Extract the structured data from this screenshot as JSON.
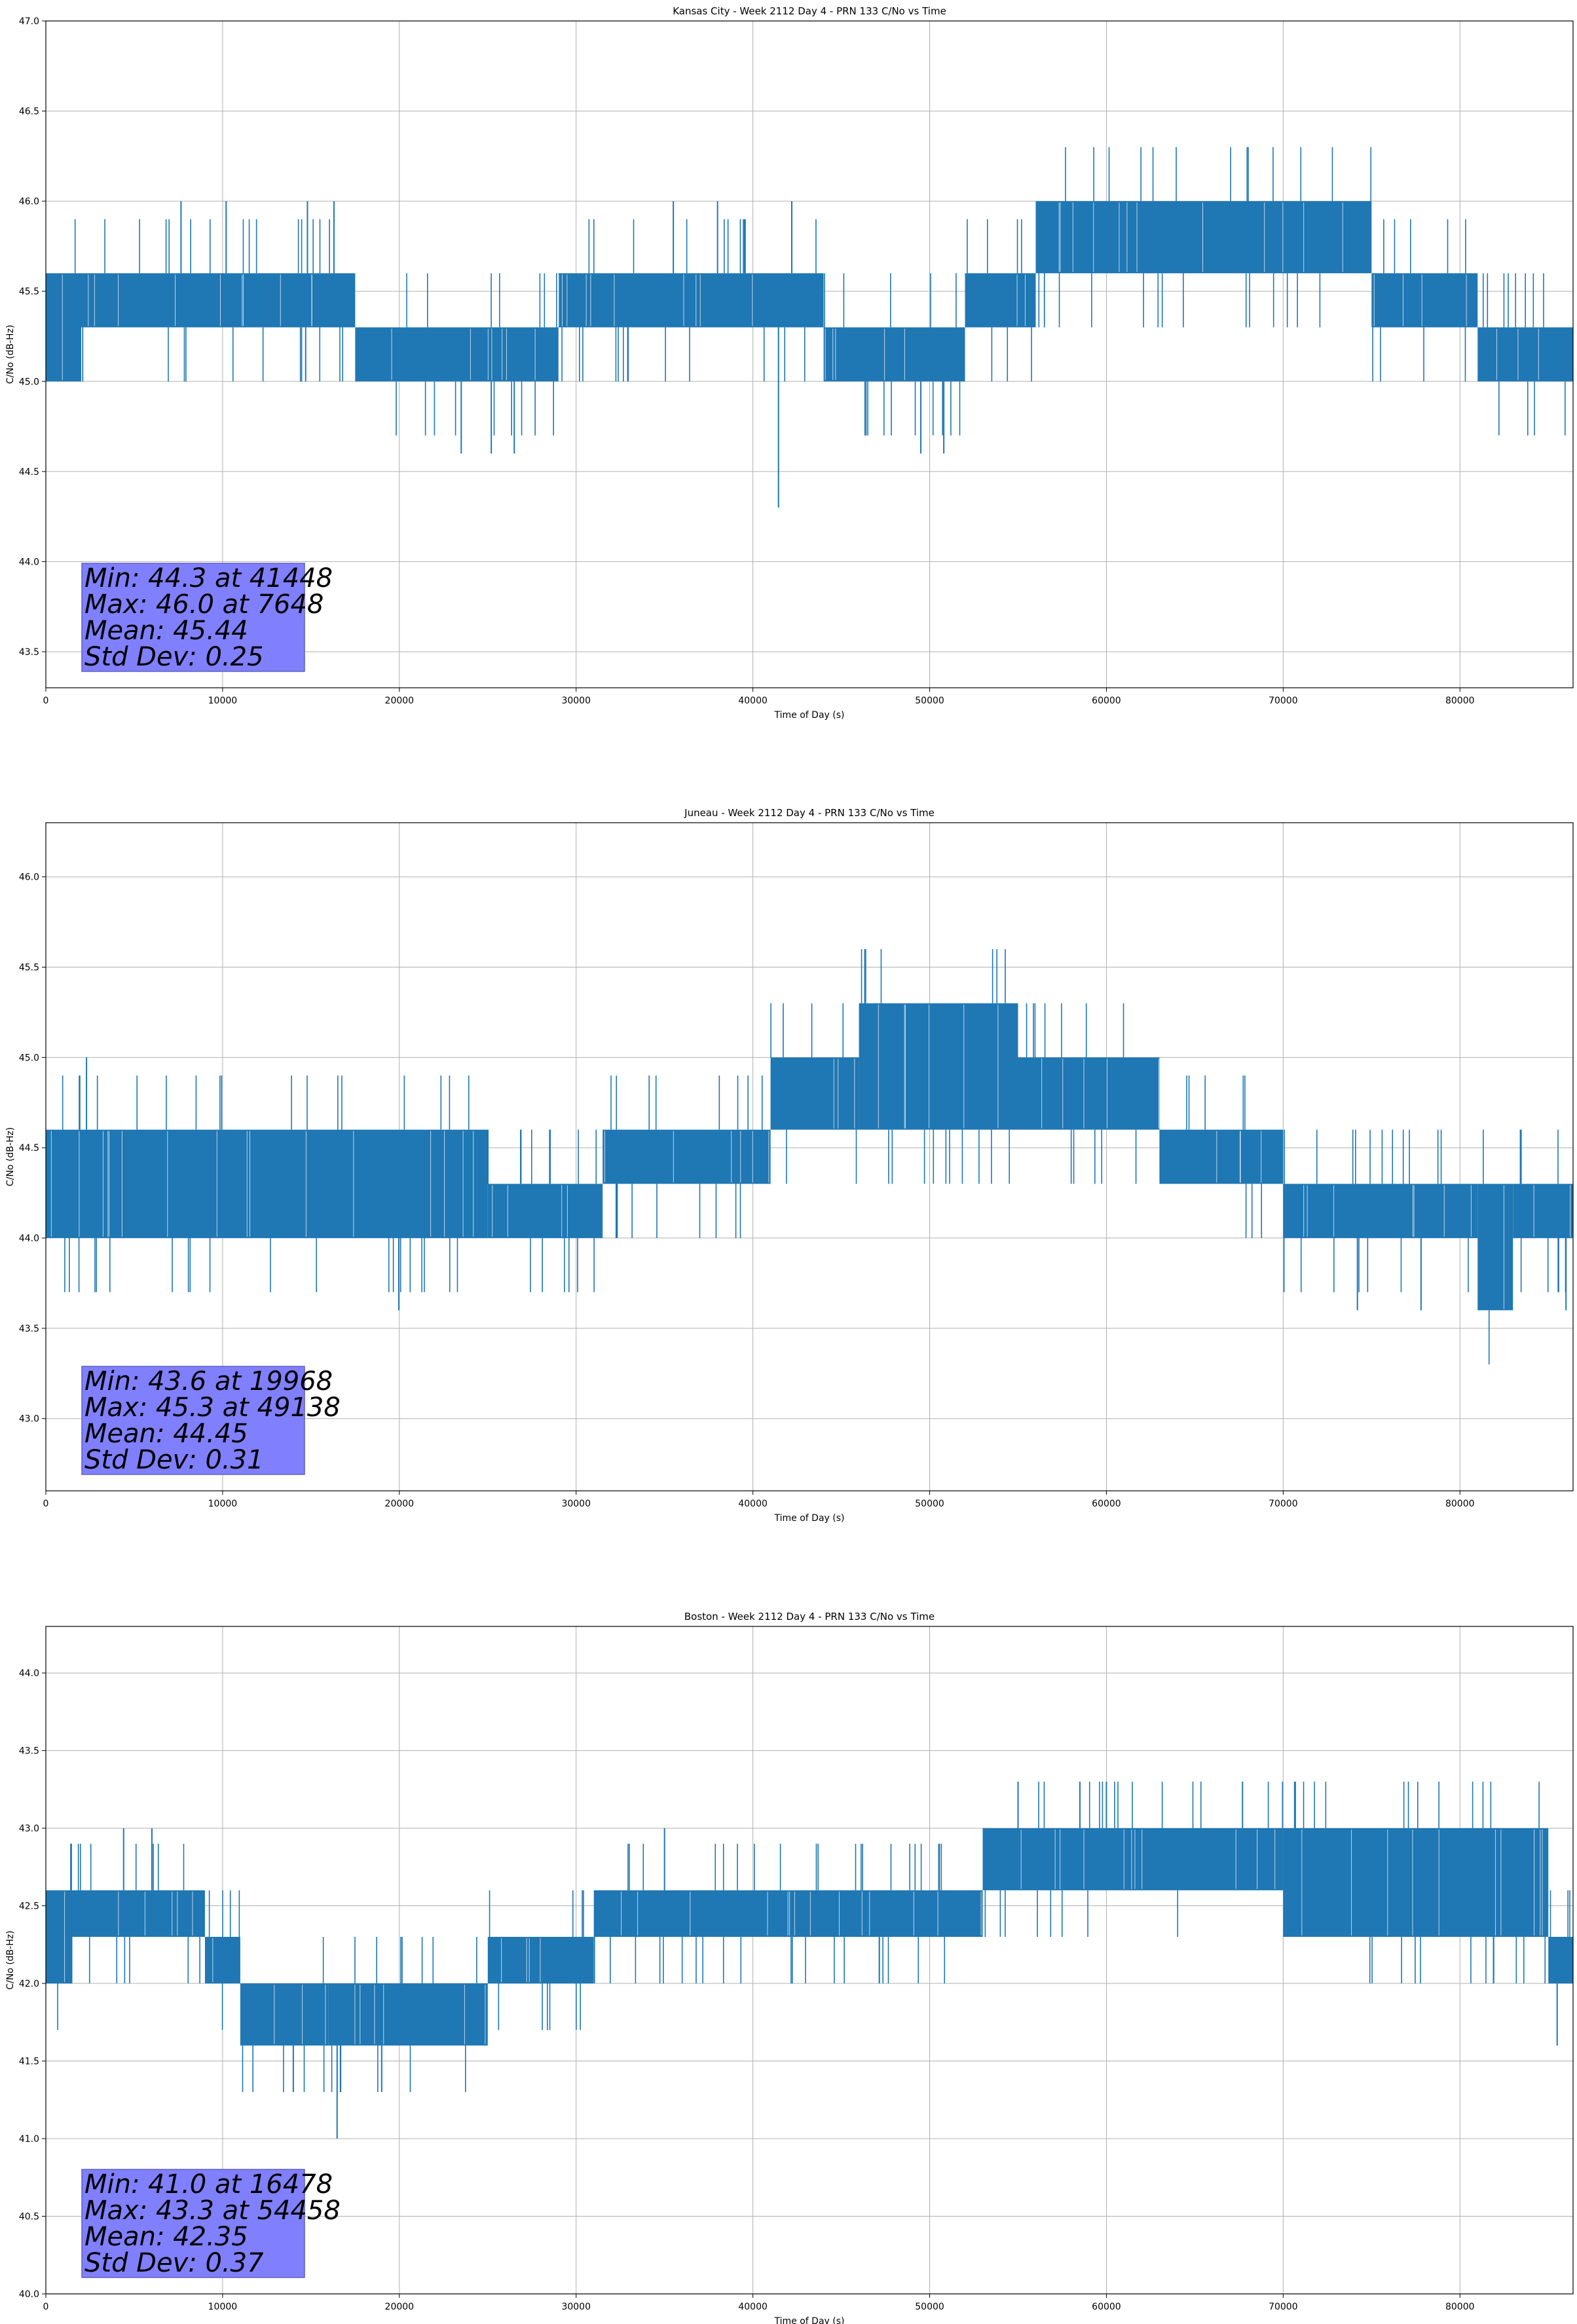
{
  "chart_data": [
    {
      "type": "line",
      "title": "Kansas City - Week 2112 Day 4 - PRN 133 C/No vs Time",
      "xlabel": "Time of Day (s)",
      "ylabel": "C/No (dB-Hz)",
      "xlim": [
        0,
        86400
      ],
      "ylim": [
        43.3,
        47.0
      ],
      "xticks": [
        0,
        10000,
        20000,
        30000,
        40000,
        50000,
        60000,
        70000,
        80000
      ],
      "yticks": [
        43.5,
        44.0,
        44.5,
        45.0,
        45.5,
        46.0,
        46.5,
        47.0
      ],
      "grid": true,
      "series_color": "#1f77b4",
      "levels": [
        {
          "from": 0,
          "to": 2000,
          "lo": 45.0,
          "hi": 45.6
        },
        {
          "from": 2000,
          "to": 17500,
          "lo": 45.3,
          "hi": 45.6
        },
        {
          "from": 17500,
          "to": 29000,
          "lo": 45.0,
          "hi": 45.3
        },
        {
          "from": 29000,
          "to": 44000,
          "lo": 45.3,
          "hi": 45.6
        },
        {
          "from": 44000,
          "to": 52000,
          "lo": 45.0,
          "hi": 45.3
        },
        {
          "from": 52000,
          "to": 56000,
          "lo": 45.3,
          "hi": 45.6
        },
        {
          "from": 56000,
          "to": 75000,
          "lo": 45.6,
          "hi": 46.0
        },
        {
          "from": 75000,
          "to": 81000,
          "lo": 45.3,
          "hi": 45.6
        },
        {
          "from": 81000,
          "to": 86400,
          "lo": 45.0,
          "hi": 45.3
        }
      ],
      "spikes": [
        [
          7648,
          46.0
        ],
        [
          10200,
          46.0
        ],
        [
          14800,
          46.0
        ],
        [
          16300,
          46.0
        ],
        [
          23500,
          44.6
        ],
        [
          25200,
          44.6
        ],
        [
          26500,
          44.6
        ],
        [
          35500,
          46.0
        ],
        [
          38000,
          46.0
        ],
        [
          41448,
          44.3
        ],
        [
          42200,
          46.0
        ],
        [
          49500,
          44.6
        ],
        [
          50800,
          44.6
        ]
      ],
      "stats": {
        "min": "Min: 44.3 at 41448",
        "max": "Max: 46.0 at 7648",
        "mean": "Mean: 45.44",
        "std": "Std Dev: 0.25"
      }
    },
    {
      "type": "line",
      "title": "Juneau - Week 2112 Day 4 - PRN 133 C/No vs Time",
      "xlabel": "Time of Day (s)",
      "ylabel": "C/No (dB-Hz)",
      "xlim": [
        0,
        86400
      ],
      "ylim": [
        42.6,
        46.3
      ],
      "xticks": [
        0,
        10000,
        20000,
        30000,
        40000,
        50000,
        60000,
        70000,
        80000
      ],
      "yticks": [
        43.0,
        43.5,
        44.0,
        44.5,
        45.0,
        45.5,
        46.0
      ],
      "grid": true,
      "series_color": "#1f77b4",
      "levels": [
        {
          "from": 0,
          "to": 25000,
          "lo": 44.0,
          "hi": 44.6
        },
        {
          "from": 25000,
          "to": 31500,
          "lo": 44.0,
          "hi": 44.3
        },
        {
          "from": 31500,
          "to": 41000,
          "lo": 44.3,
          "hi": 44.6
        },
        {
          "from": 41000,
          "to": 46000,
          "lo": 44.6,
          "hi": 45.0
        },
        {
          "from": 46000,
          "to": 55000,
          "lo": 44.6,
          "hi": 45.3
        },
        {
          "from": 55000,
          "to": 63000,
          "lo": 44.6,
          "hi": 45.0
        },
        {
          "from": 63000,
          "to": 70000,
          "lo": 44.3,
          "hi": 44.6
        },
        {
          "from": 70000,
          "to": 81000,
          "lo": 44.0,
          "hi": 44.3
        },
        {
          "from": 81000,
          "to": 83000,
          "lo": 43.6,
          "hi": 44.3
        },
        {
          "from": 83000,
          "to": 86400,
          "lo": 44.0,
          "hi": 44.3
        }
      ],
      "spikes": [
        [
          2300,
          45.0
        ],
        [
          19968,
          43.6
        ],
        [
          74200,
          43.6
        ],
        [
          77800,
          43.6
        ],
        [
          86000,
          43.6
        ]
      ],
      "stats": {
        "min": "Min: 43.6 at 19968",
        "max": "Max: 45.3 at 49138",
        "mean": "Mean: 44.45",
        "std": "Std Dev: 0.31"
      }
    },
    {
      "type": "line",
      "title": "Boston - Week 2112 Day 4 - PRN 133 C/No vs Time",
      "xlabel": "Time of Day (s)",
      "ylabel": "C/No (dB-Hz)",
      "xlim": [
        0,
        86400
      ],
      "ylim": [
        40.0,
        44.3
      ],
      "xticks": [
        0,
        10000,
        20000,
        30000,
        40000,
        50000,
        60000,
        70000,
        80000
      ],
      "yticks": [
        40.0,
        40.5,
        41.0,
        41.5,
        42.0,
        42.5,
        43.0,
        43.5,
        44.0
      ],
      "grid": true,
      "series_color": "#1f77b4",
      "levels": [
        {
          "from": 0,
          "to": 1500,
          "lo": 42.0,
          "hi": 42.6
        },
        {
          "from": 1500,
          "to": 9000,
          "lo": 42.3,
          "hi": 42.6
        },
        {
          "from": 9000,
          "to": 11000,
          "lo": 42.0,
          "hi": 42.3
        },
        {
          "from": 11000,
          "to": 16000,
          "lo": 41.6,
          "hi": 42.0
        },
        {
          "from": 16000,
          "to": 25000,
          "lo": 41.6,
          "hi": 42.0
        },
        {
          "from": 25000,
          "to": 31000,
          "lo": 42.0,
          "hi": 42.3
        },
        {
          "from": 31000,
          "to": 53000,
          "lo": 42.3,
          "hi": 42.6
        },
        {
          "from": 53000,
          "to": 70000,
          "lo": 42.6,
          "hi": 43.0
        },
        {
          "from": 70000,
          "to": 85000,
          "lo": 42.3,
          "hi": 43.0
        },
        {
          "from": 85000,
          "to": 86400,
          "lo": 42.0,
          "hi": 42.3
        }
      ],
      "spikes": [
        [
          4400,
          43.0
        ],
        [
          6000,
          43.0
        ],
        [
          16478,
          41.0
        ],
        [
          14000,
          41.3
        ],
        [
          19000,
          41.3
        ],
        [
          35000,
          43.0
        ],
        [
          55000,
          43.3
        ],
        [
          58500,
          43.3
        ],
        [
          60000,
          43.3
        ],
        [
          67700,
          43.3
        ],
        [
          85500,
          41.6
        ]
      ],
      "stats": {
        "min": "Min: 41.0 at 16478",
        "max": "Max: 43.3 at 54458",
        "mean": "Mean: 42.35",
        "std": "Std Dev: 0.37"
      }
    }
  ]
}
